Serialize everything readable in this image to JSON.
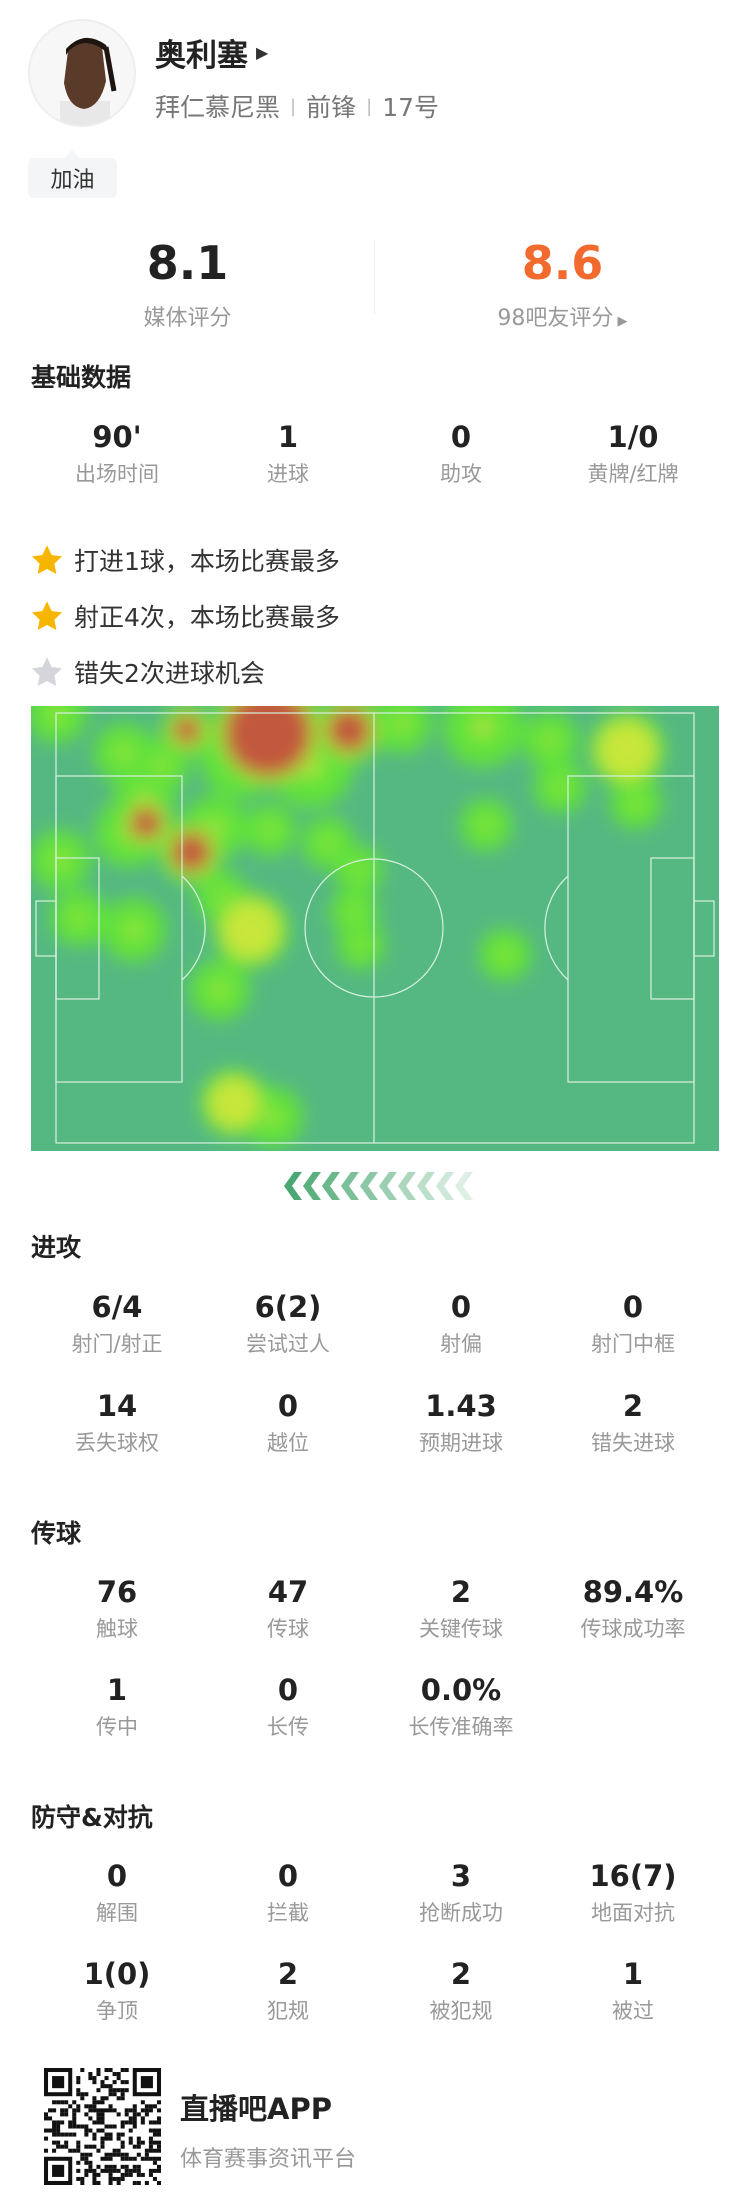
{
  "player": {
    "name": "奥利塞",
    "team": "拜仁慕尼黑",
    "position": "前锋",
    "number": "17号",
    "cheer": "加油"
  },
  "ratings": {
    "media": {
      "value": "8.1",
      "label": "媒体评分",
      "color": "#222222"
    },
    "fans": {
      "value": "8.6",
      "label": "98吧友评分",
      "color": "#f26a2e"
    }
  },
  "basic": {
    "title": "基础数据",
    "stats": [
      {
        "value": "90'",
        "label": "出场时间"
      },
      {
        "value": "1",
        "label": "进球"
      },
      {
        "value": "0",
        "label": "助攻"
      },
      {
        "value": "1/0",
        "label": "黄牌/红牌"
      }
    ]
  },
  "highlights": [
    {
      "text": "打进1球，本场比赛最多",
      "star": "gold"
    },
    {
      "text": "射正4次，本场比赛最多",
      "star": "gold"
    },
    {
      "text": "错失2次进球机会",
      "star": "gray"
    }
  ],
  "heatmap": {
    "pitch_color": "#55b882",
    "attack_direction": "left"
  },
  "attack": {
    "title": "进攻",
    "stats": [
      {
        "value": "6/4",
        "label": "射门/射正"
      },
      {
        "value": "6(2)",
        "label": "尝试过人"
      },
      {
        "value": "0",
        "label": "射偏"
      },
      {
        "value": "0",
        "label": "射门中框"
      },
      {
        "value": "14",
        "label": "丢失球权"
      },
      {
        "value": "0",
        "label": "越位"
      },
      {
        "value": "1.43",
        "label": "预期进球"
      },
      {
        "value": "2",
        "label": "错失进球"
      }
    ]
  },
  "passing": {
    "title": "传球",
    "stats": [
      {
        "value": "76",
        "label": "触球"
      },
      {
        "value": "47",
        "label": "传球"
      },
      {
        "value": "2",
        "label": "关键传球"
      },
      {
        "value": "89.4%",
        "label": "传球成功率"
      },
      {
        "value": "1",
        "label": "传中"
      },
      {
        "value": "0",
        "label": "长传"
      },
      {
        "value": "0.0%",
        "label": "长传准确率"
      }
    ]
  },
  "defense": {
    "title": "防守&对抗",
    "stats": [
      {
        "value": "0",
        "label": "解围"
      },
      {
        "value": "0",
        "label": "拦截"
      },
      {
        "value": "3",
        "label": "抢断成功"
      },
      {
        "value": "16(7)",
        "label": "地面对抗"
      },
      {
        "value": "1(0)",
        "label": "争顶"
      },
      {
        "value": "2",
        "label": "犯规"
      },
      {
        "value": "2",
        "label": "被犯规"
      },
      {
        "value": "1",
        "label": "被过"
      }
    ]
  },
  "footer": {
    "app_name": "直播吧APP",
    "tagline": "体育赛事资讯平台"
  }
}
